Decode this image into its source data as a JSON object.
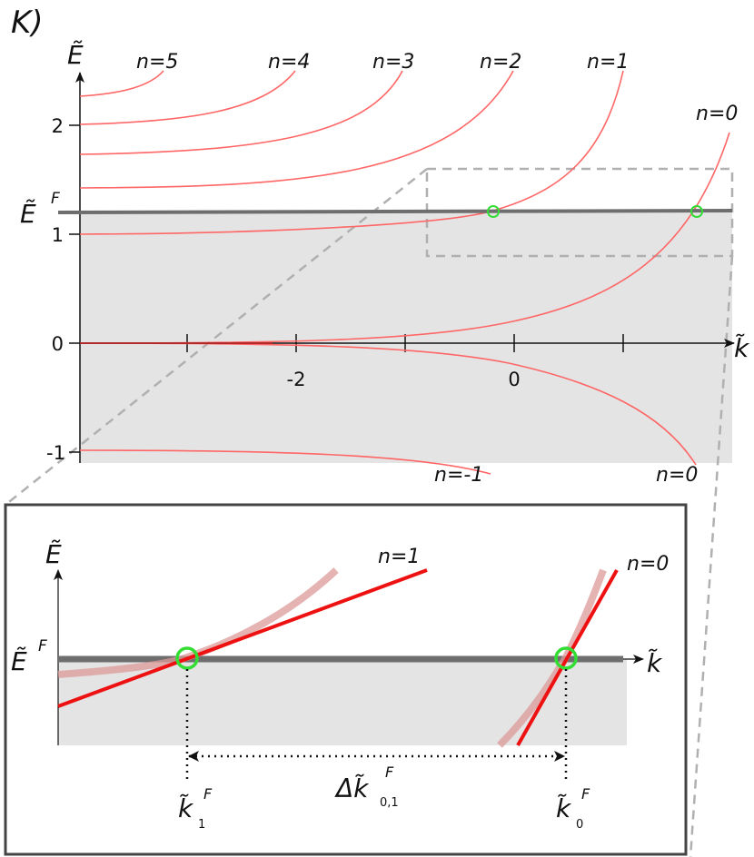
{
  "panel_label": "K)",
  "main_plot": {
    "y_axis_symbol": "Ẽ",
    "x_axis_symbol": "k̃",
    "fermi_label": "Ẽ",
    "fermi_superscript": "F",
    "fermi_energy": 1.2,
    "y_ticks": [
      "2",
      "1",
      "0",
      "-1"
    ],
    "x_tick_labels": [
      "-2",
      "0"
    ],
    "band_labels_top": [
      "n=5",
      "n=4",
      "n=3",
      "n=2",
      "n=1",
      "n=0"
    ],
    "band_labels_bottom": [
      "n=-1",
      "n=0"
    ],
    "colors": {
      "band": "#ff6666",
      "fermi_line": "#6e6e6e",
      "filled_region": "#e4e4e4",
      "crossing_marker": "#33dd33"
    }
  },
  "inset": {
    "y_axis_symbol": "Ẽ",
    "x_axis_symbol": "k̃",
    "fermi_label": "Ẽ",
    "fermi_superscript": "F",
    "band_label_1": "n=1",
    "band_label_0": "n=0",
    "k1_label": "k̃",
    "k1_superscript": "F",
    "k1_subscript": "1",
    "k0_label": "k̃",
    "k0_superscript": "F",
    "k0_subscript": "0",
    "delta_label": "Δk̃",
    "delta_superscript": "F",
    "delta_subscript": "0,1",
    "colors": {
      "linear_band": "#ee1111",
      "curved_band": "#dd9999"
    }
  }
}
